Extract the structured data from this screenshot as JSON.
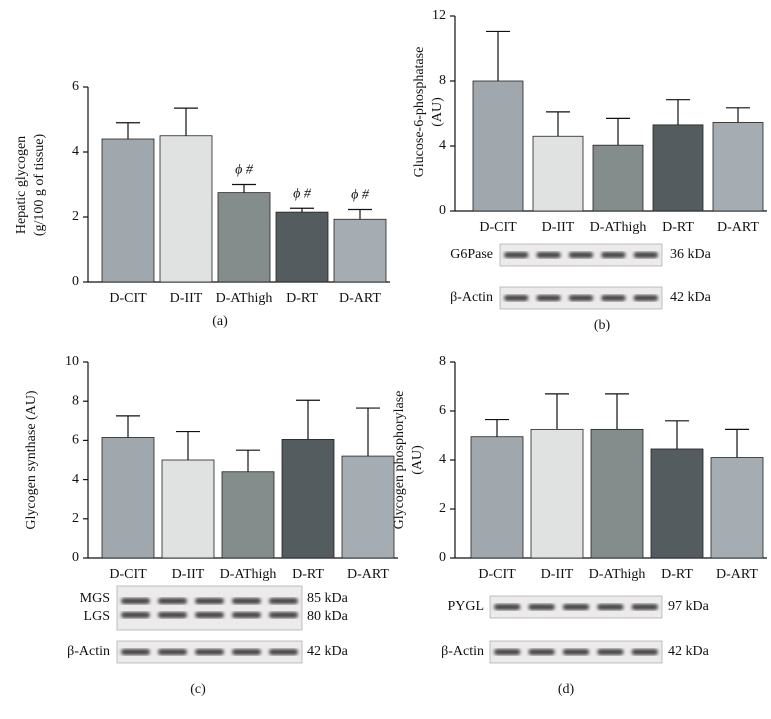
{
  "chart_data": [
    {
      "type": "bar",
      "panel": "(a)",
      "ylabel": [
        "Hepatic glycogen",
        "(g/100 g of tissue)"
      ],
      "categories": [
        "D-CIT",
        "D-IIT",
        "D-AThigh",
        "D-RT",
        "D-ART"
      ],
      "values": [
        4.4,
        4.5,
        2.75,
        2.15,
        1.93
      ],
      "errors": [
        0.5,
        0.85,
        0.25,
        0.12,
        0.3
      ],
      "annotations": [
        null,
        null,
        "ϕ #",
        "ϕ #",
        "ϕ #"
      ],
      "colors": [
        "#a0a8ad",
        "#dfe2e1",
        "#858d8c",
        "#555c5f",
        "#a6adb2"
      ],
      "ylim": [
        0,
        6
      ],
      "yticks": [
        0,
        2,
        4,
        6
      ],
      "blots": []
    },
    {
      "type": "bar",
      "panel": "(b)",
      "ylabel": [
        "Glucose-6-phosphatase",
        "(AU)"
      ],
      "categories": [
        "D-CIT",
        "D-IIT",
        "D-AThigh",
        "D-RT",
        "D-ART"
      ],
      "values": [
        8.0,
        4.6,
        4.05,
        5.3,
        5.45
      ],
      "errors": [
        3.05,
        1.5,
        1.65,
        1.55,
        0.9
      ],
      "colors": [
        "#a0a8ad",
        "#dfe2e1",
        "#858d8c",
        "#555c5f",
        "#a6adb2"
      ],
      "ylim": [
        0,
        12
      ],
      "yticks": [
        0,
        4,
        8,
        12
      ],
      "blots": [
        {
          "label": [
            "G6Pase"
          ],
          "size": [
            "36 kDa"
          ]
        },
        {
          "label": [
            "β-Actin"
          ],
          "size": [
            "42 kDa"
          ]
        }
      ]
    },
    {
      "type": "bar",
      "panel": "(c)",
      "ylabel": [
        "Glycogen synthase (AU)"
      ],
      "categories": [
        "D-CIT",
        "D-IIT",
        "D-AThigh",
        "D-RT",
        "D-ART"
      ],
      "values": [
        6.15,
        5.0,
        4.4,
        6.05,
        5.2
      ],
      "errors": [
        1.1,
        1.45,
        1.1,
        2.0,
        2.45
      ],
      "colors": [
        "#a0a8ad",
        "#dfe2e1",
        "#858d8c",
        "#555c5f",
        "#a6adb2"
      ],
      "ylim": [
        0,
        10
      ],
      "yticks": [
        0,
        2,
        4,
        6,
        8,
        10
      ],
      "blots": [
        {
          "label": [
            "MGS",
            "LGS"
          ],
          "size": [
            "85 kDa",
            "80 kDa"
          ]
        },
        {
          "label": [
            "β-Actin"
          ],
          "size": [
            "42 kDa"
          ]
        }
      ]
    },
    {
      "type": "bar",
      "panel": "(d)",
      "ylabel": [
        "Glycogen phosphorylase",
        "(AU)"
      ],
      "categories": [
        "D-CIT",
        "D-IIT",
        "D-AThigh",
        "D-RT",
        "D-ART"
      ],
      "values": [
        4.95,
        5.25,
        5.25,
        4.45,
        4.1
      ],
      "errors": [
        0.7,
        1.45,
        1.45,
        1.15,
        1.15
      ],
      "colors": [
        "#a0a8ad",
        "#dfe2e1",
        "#858d8c",
        "#555c5f",
        "#a6adb2"
      ],
      "ylim": [
        0,
        8
      ],
      "yticks": [
        0,
        2,
        4,
        6,
        8
      ],
      "blots": [
        {
          "label": [
            "PYGL"
          ],
          "size": [
            "97 kDa"
          ]
        },
        {
          "label": [
            "β-Actin"
          ],
          "size": [
            "42 kDa"
          ]
        }
      ]
    }
  ]
}
